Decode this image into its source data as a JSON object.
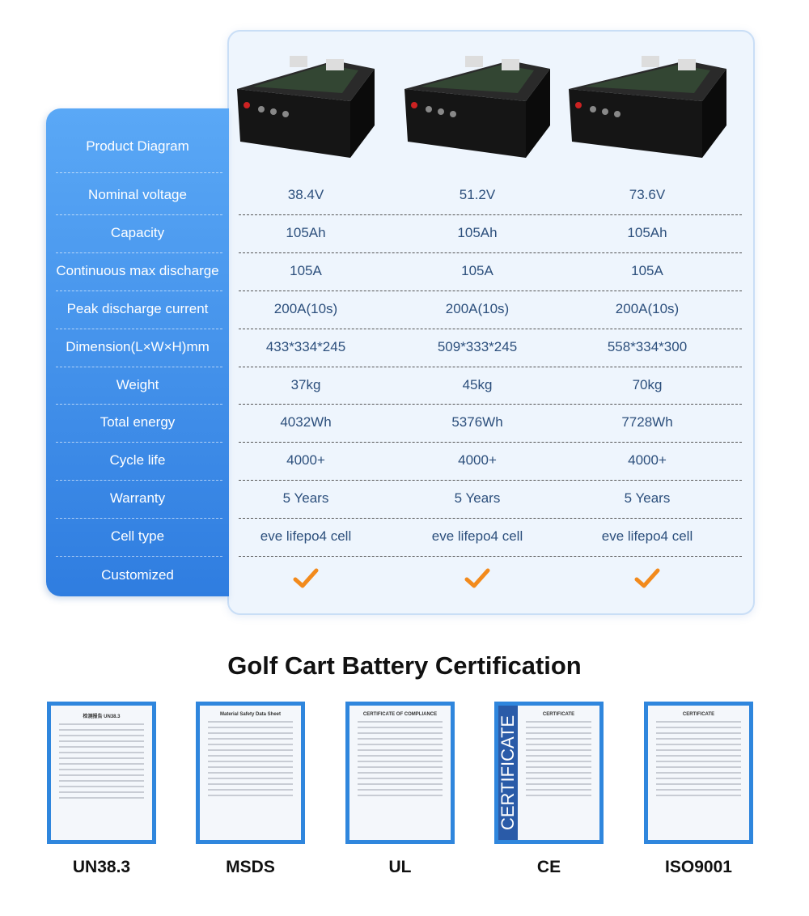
{
  "table": {
    "row_labels": [
      "Product Diagram",
      "Nominal voltage",
      "Capacity",
      "Continuous max discharge",
      "Peak discharge current",
      "Dimension(L×W×H)mm",
      "Weight",
      "Total energy",
      "Cycle life",
      "Warranty",
      "Cell type",
      "Customized"
    ],
    "columns": [
      {
        "values": [
          "38.4V",
          "105Ah",
          "105A",
          "200A(10s)",
          "433*334*245",
          "37kg",
          "4032Wh",
          "4000+",
          "5 Years",
          "eve lifepo4 cell"
        ],
        "customized": true
      },
      {
        "values": [
          "51.2V",
          "105Ah",
          "105A",
          "200A(10s)",
          "509*333*245",
          "45kg",
          "5376Wh",
          "4000+",
          "5 Years",
          "eve lifepo4 cell"
        ],
        "customized": true
      },
      {
        "values": [
          "73.6V",
          "105Ah",
          "105A",
          "200A(10s)",
          "558*334*300",
          "70kg",
          "7728Wh",
          "4000+",
          "5 Years",
          "eve lifepo4 cell"
        ],
        "customized": true
      }
    ],
    "check_color": "#f28a1c",
    "header_color": "#3f90ea"
  },
  "certification": {
    "title": "Golf Cart Battery Certification",
    "items": [
      {
        "label": "UN38.3",
        "doc_title": "检测报告 UN38.3"
      },
      {
        "label": "MSDS",
        "doc_title": "Material Safety Data Sheet"
      },
      {
        "label": "UL",
        "doc_title": "CERTIFICATE OF COMPLIANCE"
      },
      {
        "label": "CE",
        "doc_title": "CERTIFICATE"
      },
      {
        "label": "ISO9001",
        "doc_title": "CERTIFICATE"
      }
    ]
  }
}
